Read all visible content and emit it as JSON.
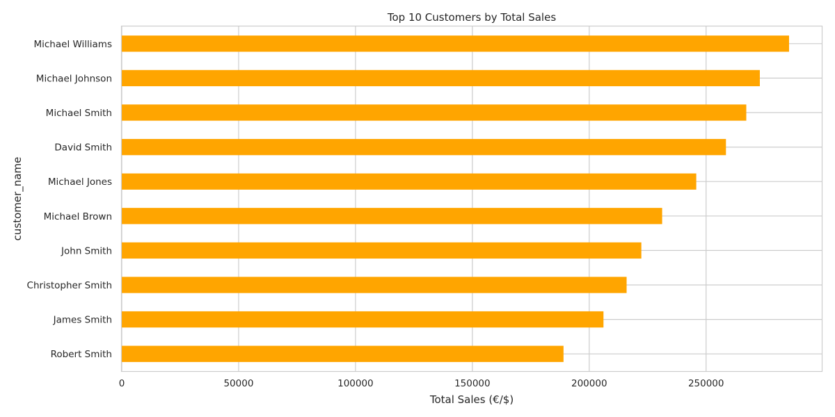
{
  "chart_data": {
    "type": "bar",
    "orientation": "horizontal",
    "title": "Top 10 Customers by Total Sales",
    "xlabel": "Total Sales (€/$)",
    "ylabel": "customer_name",
    "categories": [
      "Michael Williams",
      "Michael Johnson",
      "Michael Smith",
      "David Smith",
      "Michael Jones",
      "Michael Brown",
      "John Smith",
      "Christopher Smith",
      "James Smith",
      "Robert Smith"
    ],
    "values": [
      285500,
      273000,
      267200,
      258500,
      245800,
      231200,
      222300,
      216000,
      206100,
      189000
    ],
    "xlim": [
      0,
      300000
    ],
    "xticks": [
      0,
      50000,
      100000,
      150000,
      200000,
      250000
    ],
    "grid": true,
    "bar_color": "#FFA500",
    "grid_color": "#cccccc"
  }
}
